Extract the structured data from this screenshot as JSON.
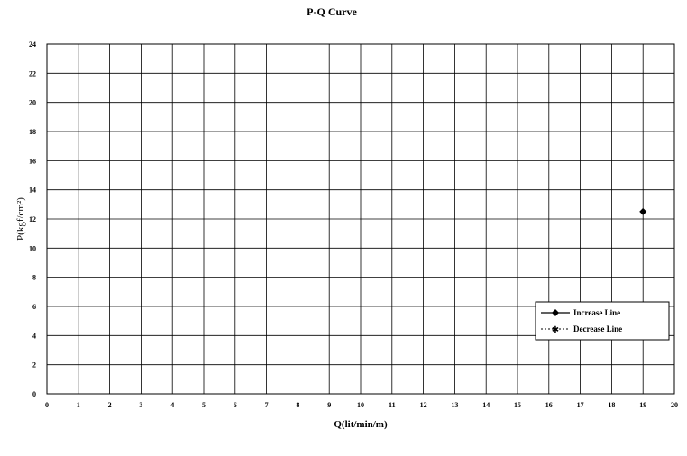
{
  "chart_data": {
    "type": "line",
    "title": "P-Q Curve",
    "xlabel": "Q(lit/min/m)",
    "ylabel": "P(kgf/cm²)",
    "xlim": [
      0,
      20
    ],
    "ylim": [
      0,
      24
    ],
    "x_ticks": [
      "0",
      "1",
      "2",
      "3",
      "4",
      "5",
      "6",
      "7",
      "8",
      "9",
      "10",
      "11",
      "12",
      "13",
      "14",
      "15",
      "16",
      "17",
      "18",
      "19",
      "20"
    ],
    "y_ticks": [
      "0",
      "2",
      "4",
      "6",
      "8",
      "10",
      "12",
      "14",
      "16",
      "18",
      "20",
      "22",
      "24"
    ],
    "grid": true,
    "legend_position": "right",
    "series": [
      {
        "name": "Increase Line",
        "marker": "diamond",
        "line_style": "solid",
        "color": "#000000",
        "points": [
          {
            "x": 19,
            "y": 12.5
          }
        ]
      },
      {
        "name": "Decrease Line",
        "marker": "asterisk",
        "line_style": "dotted",
        "color": "#000000",
        "points": []
      }
    ]
  }
}
